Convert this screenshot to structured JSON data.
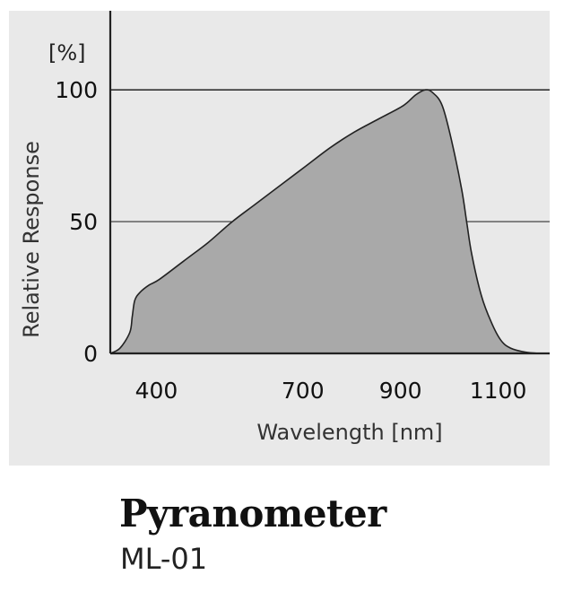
{
  "chart_data": {
    "type": "area",
    "xlabel": "Wavelength [nm]",
    "ylabel": "Relative Response",
    "y_unit": "[%]",
    "xlim": [
      300,
      1200
    ],
    "ylim": [
      0,
      130
    ],
    "x_ticks": [
      400,
      700,
      900,
      1100
    ],
    "y_ticks": [
      0,
      50,
      100
    ],
    "grid": "horizontal",
    "fill_color": "#a9a9a9",
    "line_color": "#222222",
    "series": [
      {
        "x": [
          300,
          320,
          340,
          345,
          350,
          360,
          380,
          400,
          450,
          500,
          550,
          600,
          650,
          700,
          750,
          800,
          850,
          900,
          925,
          945,
          960,
          980,
          1000,
          1020,
          1030,
          1040,
          1060,
          1080,
          1100,
          1120,
          1150,
          1180
        ],
        "y": [
          0,
          2,
          8,
          14,
          20,
          23,
          26,
          28,
          35,
          42,
          50,
          57,
          64,
          71,
          78,
          84,
          89,
          94,
          98,
          100,
          99,
          94,
          80,
          62,
          50,
          38,
          22,
          12,
          5,
          2,
          0.5,
          0
        ]
      }
    ]
  },
  "product": {
    "title": "Pyranometer",
    "model": "ML-01"
  }
}
